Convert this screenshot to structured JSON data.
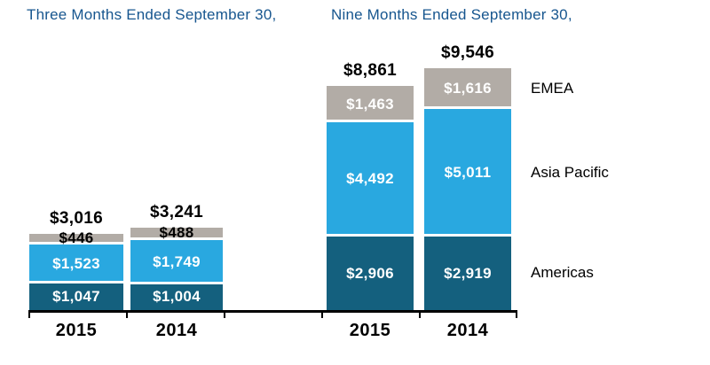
{
  "colors": {
    "title_blue": "#17568F",
    "americas": "#14607E",
    "asia_pacific": "#29A8E0",
    "emea": "#B2ACA6",
    "axis": "#000000",
    "label_on_bar": "#FFFFFF",
    "label_dark": "#000000"
  },
  "chart_data": {
    "type": "bar",
    "stacked": true,
    "grid": false,
    "regions_bottom_to_top": [
      "Americas",
      "Asia Pacific",
      "EMEA"
    ],
    "legend": {
      "position": "right",
      "items": [
        "EMEA",
        "Asia Pacific",
        "Americas"
      ]
    },
    "x_tick_years": [
      "2015",
      "2014",
      "2015",
      "2014"
    ],
    "groups": [
      {
        "title": "Three Months Ended September 30,",
        "bars": [
          {
            "year": "2015",
            "total": 3016,
            "total_label": "$3,016",
            "segments": [
              {
                "region": "Americas",
                "value": 1047,
                "label": "$1,047"
              },
              {
                "region": "Asia Pacific",
                "value": 1523,
                "label": "$1,523"
              },
              {
                "region": "EMEA",
                "value": 446,
                "label": "$446"
              }
            ]
          },
          {
            "year": "2014",
            "total": 3241,
            "total_label": "$3,241",
            "segments": [
              {
                "region": "Americas",
                "value": 1004,
                "label": "$1,004"
              },
              {
                "region": "Asia Pacific",
                "value": 1749,
                "label": "$1,749"
              },
              {
                "region": "EMEA",
                "value": 488,
                "label": "$488"
              }
            ]
          }
        ]
      },
      {
        "title": "Nine Months Ended September 30,",
        "bars": [
          {
            "year": "2015",
            "total": 8861,
            "total_label": "$8,861",
            "segments": [
              {
                "region": "Americas",
                "value": 2906,
                "label": "$2,906"
              },
              {
                "region": "Asia Pacific",
                "value": 4492,
                "label": "$4,492"
              },
              {
                "region": "EMEA",
                "value": 1463,
                "label": "$1,463"
              }
            ]
          },
          {
            "year": "2014",
            "total": 9546,
            "total_label": "$9,546",
            "segments": [
              {
                "region": "Americas",
                "value": 2919,
                "label": "$2,919"
              },
              {
                "region": "Asia Pacific",
                "value": 5011,
                "label": "$5,011"
              },
              {
                "region": "EMEA",
                "value": 1616,
                "label": "$1,616"
              }
            ]
          }
        ]
      }
    ]
  }
}
